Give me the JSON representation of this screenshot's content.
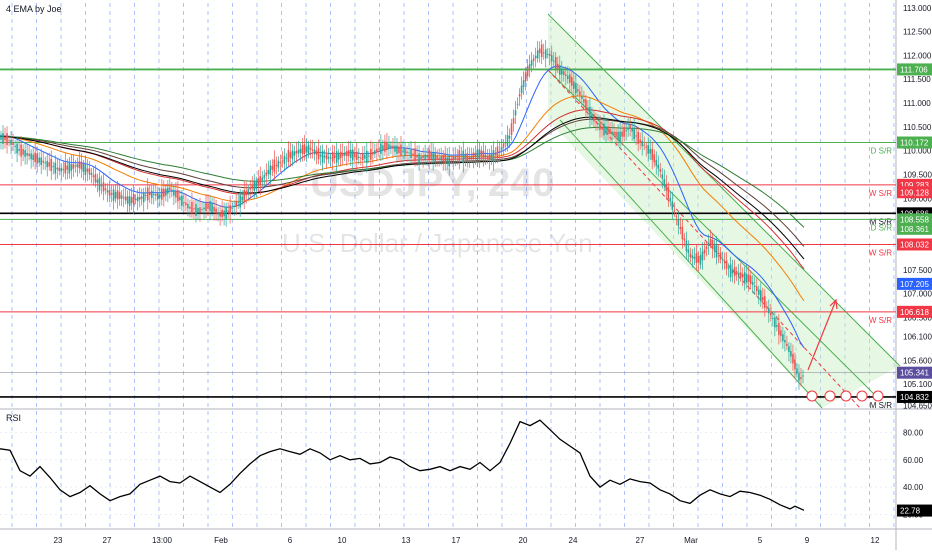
{
  "indicator_title": "4 EMA by Joe",
  "watermark": {
    "symbol": "USDJPY, 240",
    "name": "U.S. Dollar / Japanese Yen"
  },
  "rsi_label": "RSI",
  "colors": {
    "green_line": "#4caf50",
    "red_line": "#f23645",
    "black_line": "#000000",
    "blue_ema": "#2962ff",
    "channel_fill": "#c8f0c0",
    "grid_dash": "#2962ff",
    "candle_up": "#26a69a",
    "candle_down": "#ef5350"
  },
  "chart_data": [
    {
      "type": "candlestick",
      "title": "",
      "y_ticks": [
        "113.000",
        "112.500",
        "112.000",
        "111.500",
        "111.000",
        "110.500",
        "110.000",
        "109.500",
        "109.000",
        "108.500",
        "108.000",
        "107.500",
        "107.000",
        "106.500",
        "106.100",
        "105.600",
        "105.100",
        "104.650"
      ],
      "x_ticks": [
        "23",
        "27",
        "13:00",
        "Feb",
        "6",
        "10",
        "13",
        "17",
        "20",
        "24",
        "27",
        "Mar",
        "5",
        "9",
        "12"
      ],
      "ylim": [
        104.6,
        113.1
      ],
      "close_path": [
        [
          0,
          110.3
        ],
        [
          10,
          110.2
        ],
        [
          20,
          110.0
        ],
        [
          30,
          109.9
        ],
        [
          40,
          109.8
        ],
        [
          50,
          109.7
        ],
        [
          60,
          109.6
        ],
        [
          70,
          109.65
        ],
        [
          80,
          109.7
        ],
        [
          90,
          109.55
        ],
        [
          100,
          109.3
        ],
        [
          110,
          109.1
        ],
        [
          120,
          109.05
        ],
        [
          130,
          108.95
        ],
        [
          140,
          109.0
        ],
        [
          150,
          109.1
        ],
        [
          160,
          109.05
        ],
        [
          170,
          109.2
        ],
        [
          180,
          109.0
        ],
        [
          190,
          108.8
        ],
        [
          200,
          108.75
        ],
        [
          210,
          108.85
        ],
        [
          220,
          108.65
        ],
        [
          230,
          108.75
        ],
        [
          240,
          108.95
        ],
        [
          250,
          109.2
        ],
        [
          260,
          109.35
        ],
        [
          270,
          109.6
        ],
        [
          280,
          109.75
        ],
        [
          290,
          109.9
        ],
        [
          300,
          110.0
        ],
        [
          310,
          110.05
        ],
        [
          320,
          109.9
        ],
        [
          330,
          109.85
        ],
        [
          340,
          109.9
        ],
        [
          350,
          109.95
        ],
        [
          360,
          109.85
        ],
        [
          370,
          109.9
        ],
        [
          380,
          110.05
        ],
        [
          390,
          110.1
        ],
        [
          400,
          110.0
        ],
        [
          410,
          109.95
        ],
        [
          420,
          109.85
        ],
        [
          430,
          109.9
        ],
        [
          440,
          109.85
        ],
        [
          450,
          109.8
        ],
        [
          460,
          109.9
        ],
        [
          470,
          109.85
        ],
        [
          480,
          109.95
        ],
        [
          490,
          109.85
        ],
        [
          500,
          110.0
        ],
        [
          510,
          110.3
        ],
        [
          520,
          111.2
        ],
        [
          530,
          111.8
        ],
        [
          540,
          112.1
        ],
        [
          550,
          112.0
        ],
        [
          560,
          111.7
        ],
        [
          570,
          111.5
        ],
        [
          580,
          111.2
        ],
        [
          590,
          110.8
        ],
        [
          600,
          110.5
        ],
        [
          610,
          110.4
        ],
        [
          620,
          110.3
        ],
        [
          630,
          110.5
        ],
        [
          640,
          110.2
        ],
        [
          650,
          110.0
        ],
        [
          660,
          109.6
        ],
        [
          670,
          109.0
        ],
        [
          680,
          108.4
        ],
        [
          690,
          107.8
        ],
        [
          700,
          107.7
        ],
        [
          710,
          108.1
        ],
        [
          720,
          107.8
        ],
        [
          730,
          107.5
        ],
        [
          740,
          107.4
        ],
        [
          750,
          107.3
        ],
        [
          760,
          107.0
        ],
        [
          770,
          106.6
        ],
        [
          780,
          106.2
        ],
        [
          790,
          105.8
        ],
        [
          800,
          105.2
        ],
        [
          804,
          105.3
        ]
      ],
      "horizontal_levels": [
        {
          "value": 111.706,
          "label": "111.706",
          "color": "#4caf50",
          "tag": ""
        },
        {
          "value": 110.172,
          "label": "110.172",
          "color": "#4caf50",
          "tag": "D S/R"
        },
        {
          "value": 109.283,
          "label": "109.283",
          "color": "#f23645",
          "tag": "W S/R"
        },
        {
          "value": 108.686,
          "label": "108.686",
          "color": "#000000",
          "tag": "M S/R"
        },
        {
          "value": 108.558,
          "label": "108.558",
          "color": "#4caf50",
          "tag": "D S/R"
        },
        {
          "value": 108.032,
          "label": "108.032",
          "color": "#f23645",
          "tag": "W S/R"
        },
        {
          "value": 106.618,
          "label": "106.618",
          "color": "#f23645",
          "tag": "W S/R"
        },
        {
          "value": 104.832,
          "label": "104.832",
          "color": "#000000",
          "tag": "M S/R"
        }
      ],
      "extra_price_labels": [
        {
          "value": 109.128,
          "label": "109.128",
          "color": "#f23645"
        },
        {
          "value": 108.361,
          "label": "108.361",
          "color": "#4caf50"
        },
        {
          "value": 107.205,
          "label": "107.205",
          "color": "#2962ff"
        },
        {
          "value": 105.341,
          "label": "105.341",
          "color": "#5b4e9e"
        }
      ],
      "grid": "vertical dashed"
    },
    {
      "type": "line",
      "title": "RSI",
      "y_ticks": [
        "80.00",
        "60.00",
        "40.00",
        "20.00"
      ],
      "ylim": [
        10,
        95
      ],
      "current_value": "22.78",
      "series": [
        {
          "name": "",
          "values": [
            [
              0,
              68
            ],
            [
              10,
              67
            ],
            [
              20,
              52
            ],
            [
              30,
              48
            ],
            [
              40,
              55
            ],
            [
              50,
              47
            ],
            [
              60,
              38
            ],
            [
              70,
              33
            ],
            [
              80,
              36
            ],
            [
              90,
              41
            ],
            [
              100,
              35
            ],
            [
              110,
              30
            ],
            [
              120,
              33
            ],
            [
              130,
              35
            ],
            [
              140,
              42
            ],
            [
              150,
              45
            ],
            [
              160,
              48
            ],
            [
              170,
              44
            ],
            [
              180,
              43
            ],
            [
              190,
              48
            ],
            [
              200,
              44
            ],
            [
              210,
              40
            ],
            [
              220,
              36
            ],
            [
              230,
              42
            ],
            [
              240,
              50
            ],
            [
              250,
              57
            ],
            [
              260,
              63
            ],
            [
              270,
              66
            ],
            [
              280,
              68
            ],
            [
              290,
              66
            ],
            [
              300,
              64
            ],
            [
              310,
              68
            ],
            [
              320,
              65
            ],
            [
              330,
              60
            ],
            [
              340,
              63
            ],
            [
              350,
              60
            ],
            [
              360,
              61
            ],
            [
              370,
              57
            ],
            [
              380,
              58
            ],
            [
              390,
              62
            ],
            [
              400,
              60
            ],
            [
              410,
              55
            ],
            [
              420,
              52
            ],
            [
              430,
              53
            ],
            [
              440,
              55
            ],
            [
              450,
              52
            ],
            [
              460,
              55
            ],
            [
              470,
              53
            ],
            [
              480,
              58
            ],
            [
              490,
              52
            ],
            [
              500,
              58
            ],
            [
              510,
              72
            ],
            [
              520,
              88
            ],
            [
              530,
              85
            ],
            [
              540,
              89
            ],
            [
              550,
              82
            ],
            [
              560,
              75
            ],
            [
              570,
              70
            ],
            [
              580,
              65
            ],
            [
              590,
              48
            ],
            [
              600,
              40
            ],
            [
              610,
              45
            ],
            [
              620,
              42
            ],
            [
              630,
              46
            ],
            [
              640,
              44
            ],
            [
              650,
              43
            ],
            [
              660,
              38
            ],
            [
              670,
              35
            ],
            [
              680,
              30
            ],
            [
              690,
              28
            ],
            [
              700,
              34
            ],
            [
              710,
              38
            ],
            [
              720,
              35
            ],
            [
              730,
              33
            ],
            [
              740,
              37
            ],
            [
              750,
              36
            ],
            [
              760,
              34
            ],
            [
              770,
              31
            ],
            [
              780,
              27
            ],
            [
              790,
              24
            ],
            [
              795,
              26
            ],
            [
              804,
              23
            ]
          ]
        }
      ]
    }
  ]
}
